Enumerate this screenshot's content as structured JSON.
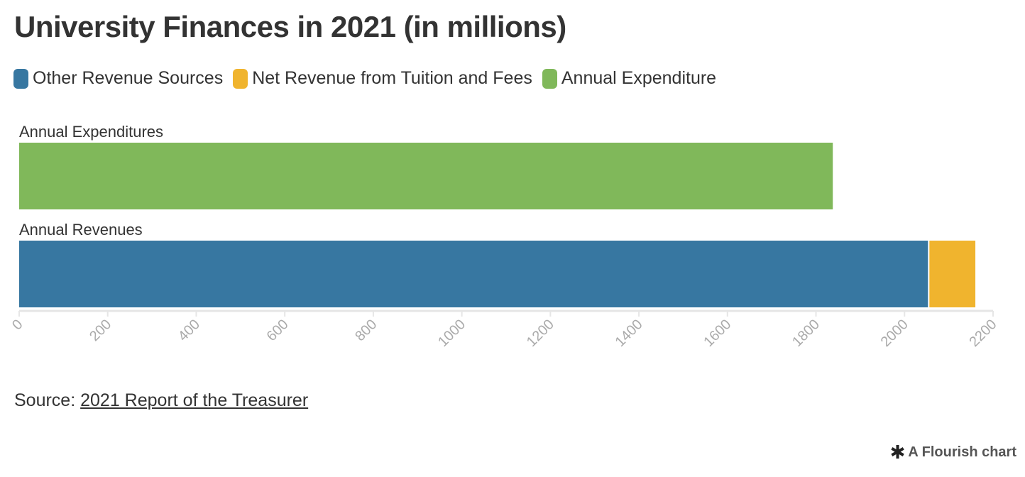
{
  "chart_data": {
    "type": "bar",
    "orientation": "horizontal",
    "stacked": true,
    "title": "University Finances in 2021 (in millions)",
    "categories": [
      "Annual Expenditures",
      "Annual Revenues"
    ],
    "series": [
      {
        "name": "Other Revenue Sources",
        "color": "#3777a1",
        "values": [
          0,
          2053
        ]
      },
      {
        "name": "Net Revenue from Tuition and Fees",
        "color": "#f0b42e",
        "values": [
          0,
          107
        ]
      },
      {
        "name": "Annual Expenditure",
        "color": "#80b85a",
        "values": [
          1838,
          0
        ]
      }
    ],
    "x_ticks": [
      "0",
      "200",
      "400",
      "600",
      "800",
      "1000",
      "1200",
      "1400",
      "1600",
      "1800",
      "2000",
      "2200"
    ],
    "xlim": [
      0,
      2200
    ],
    "xlabel": "",
    "ylabel": "",
    "legend_position": "top-left",
    "grid": false
  },
  "source": {
    "prefix": "Source:",
    "link_text": "2021 Report of the Treasurer"
  },
  "credit": {
    "icon": "asterisk-icon",
    "text": "A Flourish chart"
  }
}
